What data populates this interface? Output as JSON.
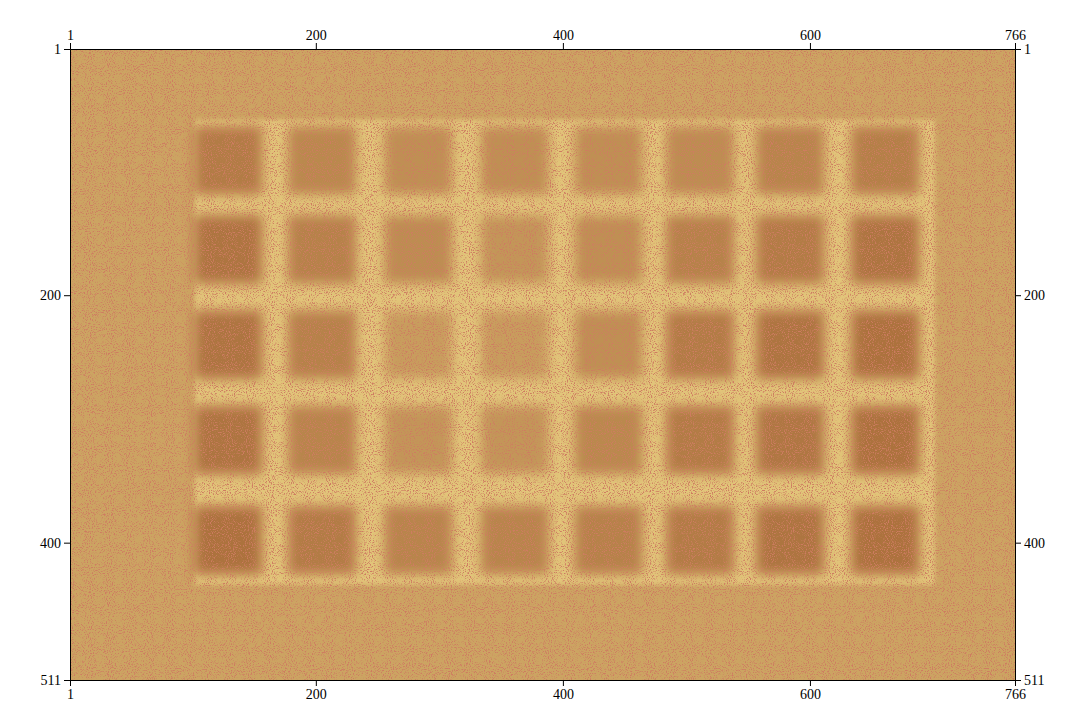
{
  "chart_data": {
    "type": "image",
    "xlim": [
      1,
      766
    ],
    "xticks": [
      1,
      200,
      400,
      600,
      766
    ],
    "ylim": [
      1,
      511
    ],
    "yticks": [
      1,
      200,
      400,
      511
    ],
    "zlim": [
      0,
      1
    ],
    "colors": [
      "#f3e08e",
      "#9c5a2c"
    ],
    "background": 0.45,
    "panel": {
      "x": [
        102,
        701
      ],
      "y": [
        58,
        434
      ],
      "value": 0.2
    },
    "squares": {
      "x": [
        129,
        205,
        283,
        361,
        437,
        511,
        584,
        661
      ],
      "y": [
        91,
        163,
        240,
        317,
        398
      ],
      "size": 55,
      "values": [
        [
          0.75,
          0.65,
          0.6,
          0.6,
          0.6,
          0.62,
          0.68,
          0.72
        ],
        [
          0.8,
          0.7,
          0.62,
          0.55,
          0.6,
          0.7,
          0.75,
          0.8
        ],
        [
          0.8,
          0.7,
          0.5,
          0.5,
          0.6,
          0.75,
          0.8,
          0.82
        ],
        [
          0.8,
          0.68,
          0.55,
          0.55,
          0.65,
          0.75,
          0.78,
          0.82
        ],
        [
          0.82,
          0.75,
          0.68,
          0.68,
          0.7,
          0.75,
          0.8,
          0.82
        ]
      ]
    }
  }
}
